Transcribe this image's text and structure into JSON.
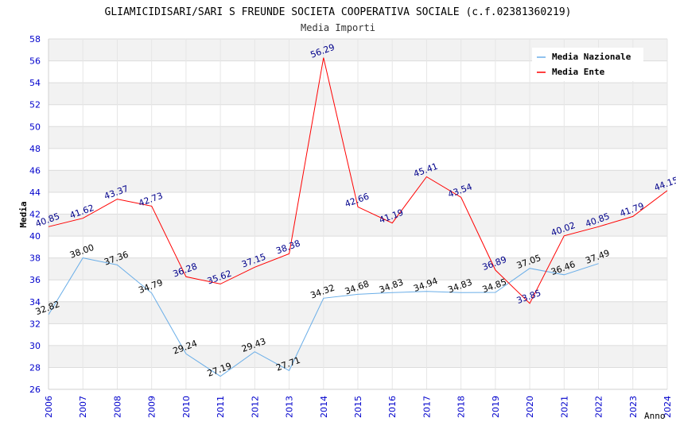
{
  "chart_data": {
    "type": "line",
    "title": "GLIAMICIDISARI/SARI S FREUNDE SOCIETA COOPERATIVA SOCIALE (c.f.02381360219)",
    "subtitle": "Media Importi",
    "xlabel": "Anno",
    "ylabel": "Media",
    "ylim": [
      26,
      58
    ],
    "ytick_step": 2,
    "ytick_labels": [
      "26",
      "28",
      "30",
      "32",
      "34",
      "36",
      "38",
      "40",
      "42",
      "44",
      "46",
      "48",
      "50",
      "52",
      "54",
      "56",
      "58"
    ],
    "categories": [
      "2006",
      "2007",
      "2008",
      "2009",
      "2010",
      "2011",
      "2012",
      "2013",
      "2014",
      "2015",
      "2016",
      "2017",
      "2018",
      "2019",
      "2020",
      "2021",
      "2022",
      "2023",
      "2024"
    ],
    "legend_position": "top-right",
    "grid": true,
    "series": [
      {
        "name": "Media Nazionale",
        "color": "#6aaee8",
        "label_color": "#000000",
        "values": [
          32.82,
          38.0,
          37.36,
          34.79,
          29.24,
          27.19,
          29.43,
          27.71,
          34.32,
          34.68,
          34.83,
          34.94,
          34.83,
          34.85,
          37.05,
          36.46,
          37.49,
          null,
          null
        ],
        "labels": [
          "32.82",
          "38.00",
          "37.36",
          "34.79",
          "29.24",
          "27.19",
          "29.43",
          "27.71",
          "34.32",
          "34.68",
          "34.83",
          "34.94",
          "34.83",
          "34.85",
          "37.05",
          "36.46",
          "37.49",
          null,
          null
        ]
      },
      {
        "name": "Media Ente",
        "color": "#ff0000",
        "label_color": "#00008b",
        "values": [
          40.85,
          41.62,
          43.37,
          42.73,
          36.28,
          35.62,
          37.15,
          38.38,
          56.29,
          42.66,
          41.19,
          45.41,
          43.54,
          36.89,
          33.85,
          40.02,
          40.85,
          41.79,
          44.15
        ],
        "labels": [
          "40.85",
          "41.62",
          "43.37",
          "42.73",
          "36.28",
          "35.62",
          "37.15",
          "38.38",
          "56.29",
          "42.66",
          "41.19",
          "45.41",
          "43.54",
          "36.89",
          "33.85",
          "40.02",
          "40.85",
          "41.79",
          "44.15"
        ]
      }
    ]
  }
}
